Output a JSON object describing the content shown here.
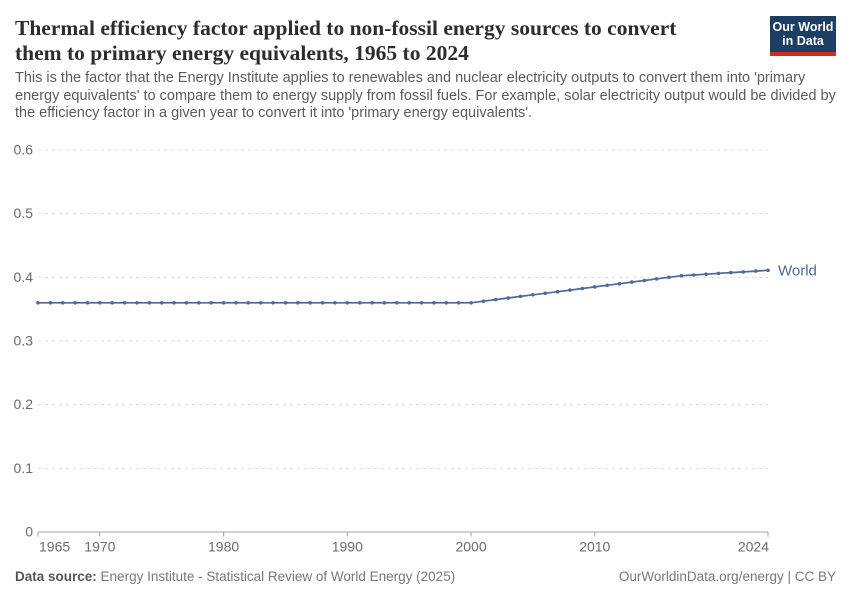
{
  "header": {
    "title": "Thermal efficiency factor applied to non-fossil energy sources to convert them to primary energy equivalents, 1965 to 2024",
    "subtitle": "This is the factor that the Energy Institute applies to renewables and nuclear electricity outputs to convert them into 'primary energy equivalents' to compare them to energy supply from fossil fuels. For example, solar electricity output would be divided by the efficiency factor in a given year to convert it into 'primary energy equivalents'."
  },
  "logo": {
    "line1": "Our World",
    "line2": "in Data",
    "bg_color": "#1d3d63",
    "accent_color": "#d42b21"
  },
  "chart_data": {
    "type": "line",
    "title": "Thermal efficiency factor applied to non-fossil energy sources to convert them to primary energy equivalents, 1965 to 2024",
    "xlabel": "",
    "ylabel": "",
    "xlim": [
      1965,
      2024
    ],
    "ylim": [
      0,
      0.6
    ],
    "xticks": [
      1965,
      1970,
      1980,
      1990,
      2000,
      2010,
      2024
    ],
    "yticks": [
      0,
      0.1,
      0.2,
      0.3,
      0.4,
      0.5,
      0.6
    ],
    "grid": "horizontal-dashed",
    "legend_position": "end-of-line-label",
    "axis_color": "#a5a5a5",
    "gridline_color": "#dcdcdc",
    "tick_label_color": "#6b6b6b",
    "x": [
      1965,
      1966,
      1967,
      1968,
      1969,
      1970,
      1971,
      1972,
      1973,
      1974,
      1975,
      1976,
      1977,
      1978,
      1979,
      1980,
      1981,
      1982,
      1983,
      1984,
      1985,
      1986,
      1987,
      1988,
      1989,
      1990,
      1991,
      1992,
      1993,
      1994,
      1995,
      1996,
      1997,
      1998,
      1999,
      2000,
      2001,
      2002,
      2003,
      2004,
      2005,
      2006,
      2007,
      2008,
      2009,
      2010,
      2011,
      2012,
      2013,
      2014,
      2015,
      2016,
      2017,
      2018,
      2019,
      2020,
      2021,
      2022,
      2023,
      2024
    ],
    "series": [
      {
        "name": "World",
        "color": "#4c6a9c",
        "values": [
          0.36,
          0.36,
          0.36,
          0.36,
          0.36,
          0.36,
          0.36,
          0.36,
          0.36,
          0.36,
          0.36,
          0.36,
          0.36,
          0.36,
          0.36,
          0.36,
          0.36,
          0.36,
          0.36,
          0.36,
          0.36,
          0.36,
          0.36,
          0.36,
          0.36,
          0.36,
          0.36,
          0.36,
          0.36,
          0.36,
          0.36,
          0.36,
          0.36,
          0.36,
          0.36,
          0.36,
          0.3625,
          0.365,
          0.3675,
          0.37,
          0.3725,
          0.375,
          0.3775,
          0.38,
          0.3825,
          0.385,
          0.3875,
          0.39,
          0.3925,
          0.395,
          0.3975,
          0.4,
          0.4025,
          0.4037,
          0.4049,
          0.4061,
          0.4074,
          0.4086,
          0.4098,
          0.411
        ]
      }
    ]
  },
  "footer": {
    "datasource_label": "Data source:",
    "datasource_text": "Energy Institute - Statistical Review of World Energy (2025)",
    "license_text": "OurWorldinData.org/energy | CC BY"
  }
}
